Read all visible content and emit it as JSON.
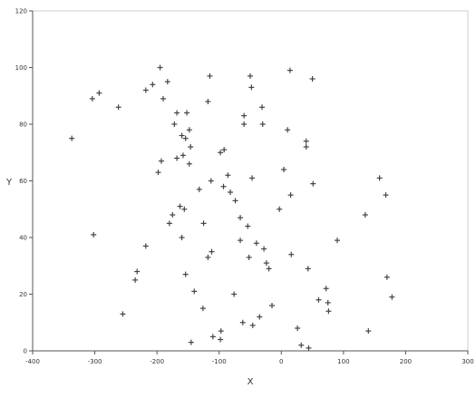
{
  "chart_data": {
    "type": "scatter",
    "title": "",
    "xlabel": "X",
    "ylabel": "Y",
    "xlim": [
      -400,
      300
    ],
    "ylim": [
      0,
      120
    ],
    "xticks": [
      "-400",
      "-300",
      "-200",
      "-100",
      "0",
      "100",
      "200",
      "300"
    ],
    "yticks": [
      "0",
      "20",
      "40",
      "60",
      "80",
      "100",
      "120"
    ],
    "grid": false,
    "legend": "none",
    "marker": "plus",
    "colors": {
      "marker": "#444444",
      "axis": "#555555",
      "frame": "#cccccc",
      "text": "#333333"
    },
    "points": [
      {
        "x": -337,
        "y": 75
      },
      {
        "x": -304,
        "y": 89
      },
      {
        "x": -293,
        "y": 91
      },
      {
        "x": -262,
        "y": 86
      },
      {
        "x": -302,
        "y": 41
      },
      {
        "x": -255,
        "y": 13
      },
      {
        "x": -235,
        "y": 25
      },
      {
        "x": -232,
        "y": 28
      },
      {
        "x": -218,
        "y": 37
      },
      {
        "x": -218,
        "y": 92
      },
      {
        "x": -207,
        "y": 94
      },
      {
        "x": -195,
        "y": 100
      },
      {
        "x": -190,
        "y": 89
      },
      {
        "x": -183,
        "y": 95
      },
      {
        "x": -168,
        "y": 84
      },
      {
        "x": -172,
        "y": 80
      },
      {
        "x": -160,
        "y": 76
      },
      {
        "x": -152,
        "y": 84
      },
      {
        "x": -154,
        "y": 75
      },
      {
        "x": -148,
        "y": 78
      },
      {
        "x": -146,
        "y": 72
      },
      {
        "x": -158,
        "y": 69
      },
      {
        "x": -168,
        "y": 68
      },
      {
        "x": -148,
        "y": 66
      },
      {
        "x": -193,
        "y": 67
      },
      {
        "x": -198,
        "y": 63
      },
      {
        "x": -180,
        "y": 45
      },
      {
        "x": -175,
        "y": 48
      },
      {
        "x": -163,
        "y": 51
      },
      {
        "x": -156,
        "y": 50
      },
      {
        "x": -160,
        "y": 40
      },
      {
        "x": -154,
        "y": 27
      },
      {
        "x": -140,
        "y": 21
      },
      {
        "x": -126,
        "y": 15
      },
      {
        "x": -118,
        "y": 33
      },
      {
        "x": -112,
        "y": 35
      },
      {
        "x": -125,
        "y": 45
      },
      {
        "x": -132,
        "y": 57
      },
      {
        "x": -113,
        "y": 60
      },
      {
        "x": -115,
        "y": 97
      },
      {
        "x": -118,
        "y": 88
      },
      {
        "x": -98,
        "y": 70
      },
      {
        "x": -92,
        "y": 71
      },
      {
        "x": -93,
        "y": 58
      },
      {
        "x": -86,
        "y": 62
      },
      {
        "x": -82,
        "y": 56
      },
      {
        "x": -74,
        "y": 53
      },
      {
        "x": -66,
        "y": 47
      },
      {
        "x": -66,
        "y": 39
      },
      {
        "x": -60,
        "y": 80
      },
      {
        "x": -60,
        "y": 83
      },
      {
        "x": -50,
        "y": 97
      },
      {
        "x": -48,
        "y": 93
      },
      {
        "x": -54,
        "y": 44
      },
      {
        "x": -52,
        "y": 33
      },
      {
        "x": -47,
        "y": 61
      },
      {
        "x": -40,
        "y": 38
      },
      {
        "x": -31,
        "y": 86
      },
      {
        "x": -30,
        "y": 80
      },
      {
        "x": -28,
        "y": 36
      },
      {
        "x": -24,
        "y": 31
      },
      {
        "x": -20,
        "y": 29
      },
      {
        "x": -3,
        "y": 50
      },
      {
        "x": 4,
        "y": 64
      },
      {
        "x": 10,
        "y": 78
      },
      {
        "x": 14,
        "y": 99
      },
      {
        "x": 15,
        "y": 55
      },
      {
        "x": 16,
        "y": 34
      },
      {
        "x": 26,
        "y": 8
      },
      {
        "x": 32,
        "y": 2
      },
      {
        "x": 40,
        "y": 72
      },
      {
        "x": 40,
        "y": 74
      },
      {
        "x": 43,
        "y": 29
      },
      {
        "x": 44,
        "y": 1
      },
      {
        "x": 50,
        "y": 96
      },
      {
        "x": 51,
        "y": 59
      },
      {
        "x": 60,
        "y": 18
      },
      {
        "x": 72,
        "y": 22
      },
      {
        "x": 75,
        "y": 17
      },
      {
        "x": 76,
        "y": 14
      },
      {
        "x": 90,
        "y": 39
      },
      {
        "x": 135,
        "y": 48
      },
      {
        "x": 140,
        "y": 7
      },
      {
        "x": 158,
        "y": 61
      },
      {
        "x": 168,
        "y": 55
      },
      {
        "x": 170,
        "y": 26
      },
      {
        "x": 178,
        "y": 19
      },
      {
        "x": -145,
        "y": 3
      },
      {
        "x": -110,
        "y": 5
      },
      {
        "x": -98,
        "y": 4
      },
      {
        "x": -97,
        "y": 7
      },
      {
        "x": -76,
        "y": 20
      },
      {
        "x": -62,
        "y": 10
      },
      {
        "x": -46,
        "y": 9
      },
      {
        "x": -35,
        "y": 12
      },
      {
        "x": -15,
        "y": 16
      }
    ]
  }
}
